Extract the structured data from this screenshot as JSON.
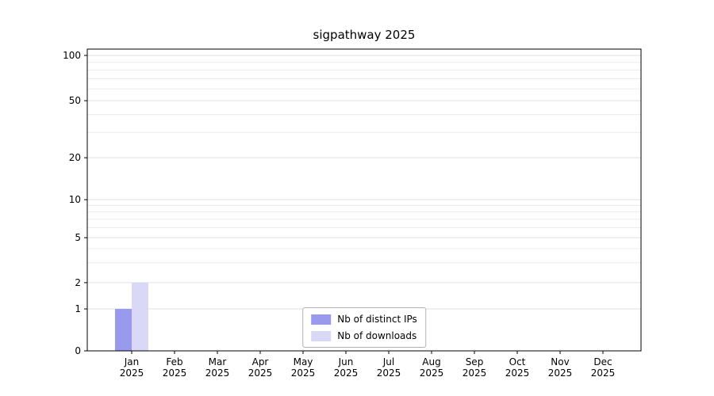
{
  "chart_data": {
    "type": "bar",
    "title": "sigpathway 2025",
    "categories": [
      {
        "month": "Jan",
        "year": "2025"
      },
      {
        "month": "Feb",
        "year": "2025"
      },
      {
        "month": "Mar",
        "year": "2025"
      },
      {
        "month": "Apr",
        "year": "2025"
      },
      {
        "month": "May",
        "year": "2025"
      },
      {
        "month": "Jun",
        "year": "2025"
      },
      {
        "month": "Jul",
        "year": "2025"
      },
      {
        "month": "Aug",
        "year": "2025"
      },
      {
        "month": "Sep",
        "year": "2025"
      },
      {
        "month": "Oct",
        "year": "2025"
      },
      {
        "month": "Nov",
        "year": "2025"
      },
      {
        "month": "Dec",
        "year": "2025"
      }
    ],
    "series": [
      {
        "name": "Nb of distinct IPs",
        "color": "#9999ee",
        "values": [
          1,
          0,
          0,
          0,
          0,
          0,
          0,
          0,
          0,
          0,
          0,
          0
        ]
      },
      {
        "name": "Nb of downloads",
        "color": "#d9d9f7",
        "values": [
          2,
          0,
          0,
          0,
          0,
          0,
          0,
          0,
          0,
          0,
          0,
          0
        ]
      }
    ],
    "y_axis": {
      "scale": "log-like",
      "ticks": [
        0,
        1,
        2,
        5,
        10,
        20,
        50,
        100
      ],
      "minor_gridlines": [
        3,
        4,
        6,
        7,
        8,
        9,
        30,
        40,
        60,
        70,
        80,
        90
      ],
      "anchors": [
        {
          "value": 0,
          "frac": 0.0
        },
        {
          "value": 1,
          "frac": 0.139
        },
        {
          "value": 2,
          "frac": 0.226
        },
        {
          "value": 5,
          "frac": 0.375
        },
        {
          "value": 10,
          "frac": 0.501
        },
        {
          "value": 20,
          "frac": 0.64
        },
        {
          "value": 50,
          "frac": 0.829
        },
        {
          "value": 100,
          "frac": 0.979
        }
      ]
    },
    "legend": {
      "position": "bottom-center-inside"
    },
    "grid": true,
    "colors": {
      "gridline_minor": "#ececec",
      "gridline_major": "#dfdfdf",
      "axis_border": "#000000",
      "text": "#000000"
    }
  }
}
